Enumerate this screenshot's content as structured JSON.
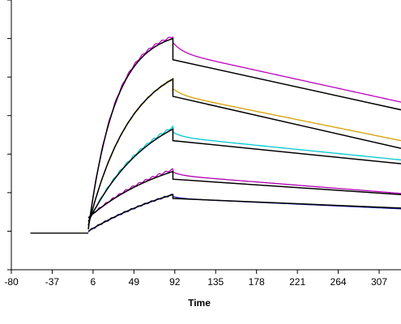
{
  "chart_data": {
    "type": "line",
    "title": "",
    "xlabel": "Time",
    "ylabel": "",
    "xlim": [
      -80,
      330
    ],
    "ylim": [
      0,
      7
    ],
    "grid": false,
    "legend": "none",
    "x_ticks": [
      -80,
      -37,
      6,
      49,
      92,
      135,
      178,
      221,
      264,
      307
    ],
    "y_ticks": [
      0,
      1,
      2,
      3,
      4,
      5,
      6,
      7
    ],
    "x_tick_labels": [
      "-80",
      "-37",
      "6",
      "49",
      "92",
      "135",
      "178",
      "221",
      "264",
      "307"
    ],
    "y_tick_labels": [
      "",
      "",
      "",
      "",
      "",
      "",
      "",
      ""
    ],
    "assoc_start": 1,
    "dissoc_start": 90,
    "x_end": 330,
    "baseline_start": -60,
    "baseline": 0.95,
    "series": [
      {
        "color": "#c000c0",
        "start": 1.05,
        "peak": 6.0,
        "end": 4.15,
        "dissoc_drop": 0.55,
        "rate": 0.035,
        "sample_start": 1.05,
        "sample_peak": 6.05,
        "sample_end": 4.35,
        "sample_drop": 0.4,
        "sample_hook": 0.25
      },
      {
        "color": "#d4a000",
        "start": 1.15,
        "peak": 4.95,
        "end": 3.15,
        "dissoc_drop": 0.45,
        "rate": 0.022,
        "sample_start": 1.15,
        "sample_peak": 4.95,
        "sample_end": 3.35,
        "sample_drop": 0.4,
        "sample_hook": 0.15
      },
      {
        "color": "#00c8d0",
        "start": 1.25,
        "peak": 3.65,
        "end": 2.75,
        "dissoc_drop": 0.3,
        "rate": 0.015,
        "sample_start": 1.25,
        "sample_peak": 3.7,
        "sample_end": 2.85,
        "sample_drop": 0.25,
        "sample_hook": 0.12
      },
      {
        "color": "#b000b0",
        "start": 1.35,
        "peak": 2.55,
        "end": 1.95,
        "dissoc_drop": 0.2,
        "rate": 0.011,
        "sample_start": 1.35,
        "sample_peak": 2.6,
        "sample_end": 1.98,
        "sample_drop": 0.15,
        "sample_hook": 0.08
      },
      {
        "color": "#2020c0",
        "start": 1.0,
        "peak": 1.95,
        "end": 1.6,
        "dissoc_drop": 0.1,
        "rate": 0.008,
        "sample_start": 1.0,
        "sample_peak": 1.95,
        "sample_end": 1.58,
        "sample_drop": 0.1,
        "sample_hook": 0.05
      }
    ]
  }
}
